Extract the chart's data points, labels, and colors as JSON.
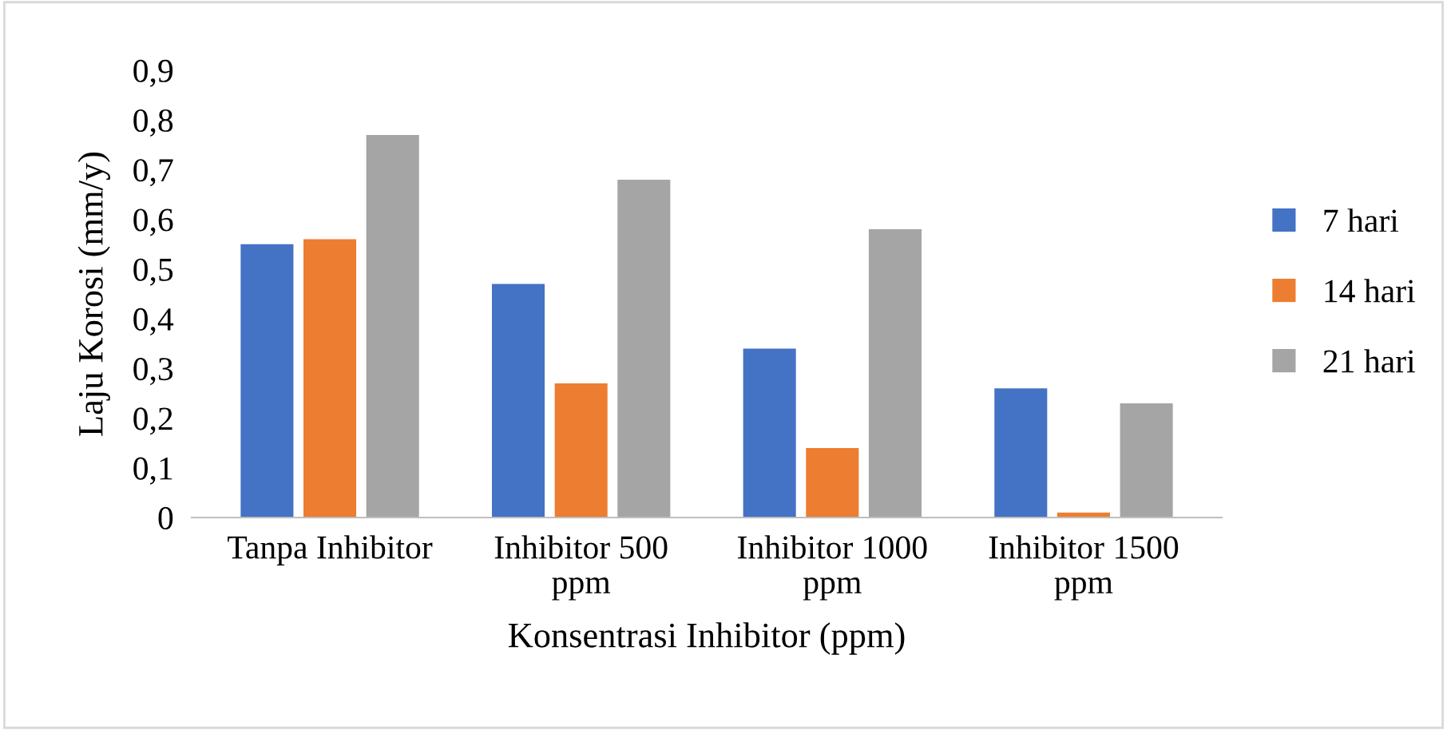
{
  "chart_data": {
    "type": "bar",
    "xlabel": "Konsentrasi Inhibitor (ppm)",
    "ylabel": "Laju Korosi (mm/y)",
    "categories": [
      "Tanpa Inhibitor",
      "Inhibitor 500\nppm",
      "Inhibitor 1000\nppm",
      "Inhibitor 1500\nppm"
    ],
    "series": [
      {
        "name": "7 hari",
        "color": "#4472c4",
        "values": [
          0.55,
          0.47,
          0.34,
          0.26
        ]
      },
      {
        "name": "14 hari",
        "color": "#ed7d31",
        "values": [
          0.56,
          0.27,
          0.14,
          0.01
        ]
      },
      {
        "name": "21 hari",
        "color": "#a5a5a5",
        "values": [
          0.77,
          0.68,
          0.58,
          0.23
        ]
      }
    ],
    "ylim": [
      0,
      0.9
    ],
    "yticks": [
      0,
      {
        "value": 0.1,
        "label": "0,1"
      },
      {
        "value": 0.2,
        "label": "0,2"
      },
      {
        "value": 0.3,
        "label": "0,3"
      },
      {
        "value": 0.4,
        "label": "0,4"
      },
      {
        "value": 0.5,
        "label": "0,5"
      },
      {
        "value": 0.6,
        "label": "0,6"
      },
      {
        "value": 0.7,
        "label": "0,7"
      },
      {
        "value": 0.8,
        "label": "0,8"
      },
      {
        "value": 0.9,
        "label": "0,9"
      }
    ],
    "grid": false,
    "legend": "right"
  }
}
